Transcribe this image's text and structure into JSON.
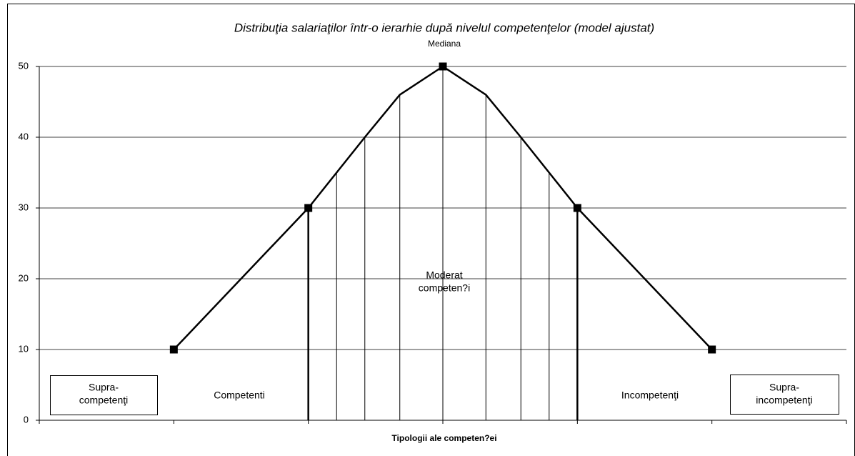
{
  "chart_data": {
    "type": "line",
    "title": "Distribuţia salariaţilor într-o ierarhie după nivelul competenţelor (model ajustat)",
    "x_label": "Tipologii ale competen?ei",
    "x": [
      1,
      2,
      2.21,
      2.42,
      2.68,
      3,
      3.32,
      3.58,
      3.79,
      4,
      5
    ],
    "values": [
      10,
      30,
      35,
      40,
      46,
      50,
      46,
      40,
      35,
      30,
      10
    ],
    "color": "#000000",
    "xlim": [
      0,
      6
    ],
    "xticks": [
      0,
      1,
      2,
      3,
      4,
      5,
      6
    ],
    "ylim": [
      0,
      50
    ],
    "yticks": [
      0,
      10,
      20,
      30,
      40,
      50
    ],
    "grid": true,
    "annotations": [
      {
        "lines": [
          "Mediana"
        ]
      },
      {
        "lines": [
          "Moderat",
          "competen?i"
        ]
      },
      {
        "lines": [
          "Supra-",
          "competenţi"
        ]
      },
      {
        "lines": [
          "Competenti"
        ]
      },
      {
        "lines": [
          "Incompetenţi"
        ]
      },
      {
        "lines": [
          "Supra-",
          "incompetenţi"
        ]
      }
    ]
  }
}
